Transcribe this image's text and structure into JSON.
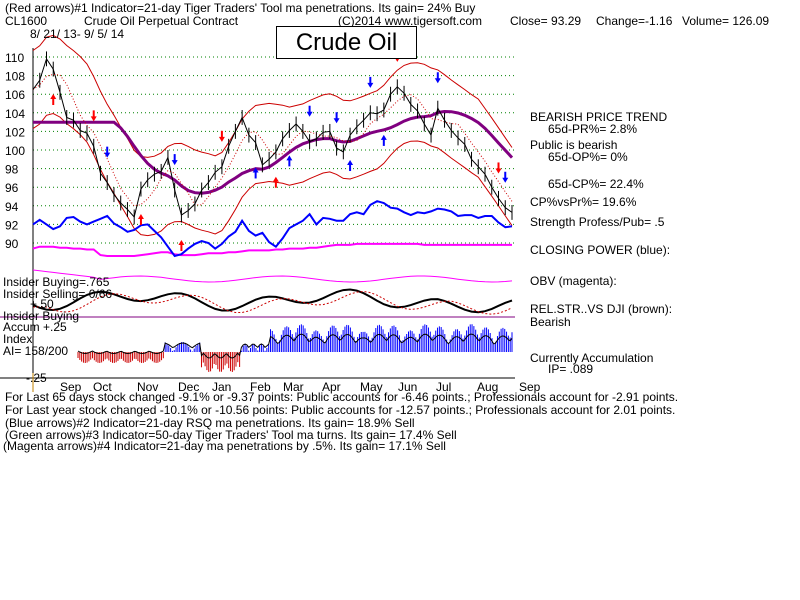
{
  "header": {
    "line1": "(Red arrows)#1 Indicator=21-day Tiger Traders' Tool ma penetrations. Its gain= 24% Buy",
    "symbol": "CL1600",
    "name": "Crude Oil Perpetual Contract",
    "copyright": "(C)2014 www.tigersoft.com",
    "close": "Close=  93.29",
    "change": "Change=-1.16",
    "volume": "Volume= 126.09",
    "date_range": "8/ 21/ 13- 9/ 5/ 14"
  },
  "title": "Crude Oil",
  "right_panel": {
    "trend": "BEARISH PRICE TREND",
    "pr": "65d-PR%= 2.8%",
    "public": "Public is bearish",
    "op": "65d-OP%= 0%",
    "cp": "65d-CP%= 22.4%",
    "cpvspr": "CP%vsPr%=  19.6%",
    "strength": "Strength Profess/Pub= .5",
    "closing_power": "CLOSING POWER (blue):",
    "obv": "OBV (magenta):",
    "relstr": "REL.STR..VS DJI (brown):",
    "bearish": "Bearish",
    "accum": "Currently Accumulation",
    "ip": "IP=  .089"
  },
  "left_panel": {
    "insider_buying": "Insider Buying=.765",
    "insider_selling": "Insider Selling= 0/66",
    "plus50": "+.50",
    "insider_buying2": "Insider Buying",
    "accum": "Accum  +.25",
    "index": "Index",
    "ai": "AI= 158/200",
    "minus25": "-.25"
  },
  "footer": {
    "line1": "For Last 65 days stock changed -9.1% or -9.37 points:  Public accounts for -6.46 points.;  Professionals account for -2.91 points.",
    "line2": "For Last year stock changed -10.1% or -10.56 points:  Public accounts for -12.57 points.;  Professionals account for  2.01 points.",
    "line3": "(Blue arrows)#2 Indicator=21-day RSQ ma penetrations. Its gain= 18.9% Sell",
    "line4": "(Green arrows)#3 Indicator=50-day Tiger Traders' Tool ma turns. Its gain= 17.4% Sell",
    "line5": "(Magenta arrows)#4 Indicator=21-day ma penetrations by .5%. Its gain= 17.1% Sell"
  },
  "colors": {
    "price": "#000000",
    "bands": "#cc0000",
    "ma": "#800080",
    "closing_power": "#0000ff",
    "obv": "#ff00ff",
    "accum_pos": "#0000ff",
    "accum_neg": "#cc0000",
    "grid": "#008000",
    "buy_arrow": "#ff0000",
    "sell_arrow": "#0000ff"
  },
  "chart_data": {
    "type": "line",
    "title": "Crude Oil",
    "ylim": [
      89,
      111
    ],
    "y_ticks": [
      "110",
      "108",
      "106",
      "104",
      "102",
      "100",
      "98",
      "96",
      "94",
      "92",
      "90"
    ],
    "x_ticks": [
      "Sep",
      "Oct",
      "Nov",
      "Dec",
      "Jan",
      "Feb",
      "Mar",
      "Apr",
      "May",
      "Jun",
      "Jul",
      "Aug",
      "Sep"
    ],
    "price_close": [
      106.5,
      107.5,
      109.8,
      108.7,
      106.2,
      103.5,
      103.2,
      102.1,
      101.8,
      100.4,
      97.5,
      96.5,
      95.2,
      94.3,
      93.6,
      92.8,
      95.8,
      96.8,
      97.4,
      97.7,
      99.2,
      95.7,
      93.0,
      93.5,
      94.2,
      95.7,
      96.5,
      97.6,
      98.2,
      100.4,
      102.0,
      103.5,
      101.6,
      100.8,
      98.4,
      99.0,
      99.8,
      101.2,
      102.1,
      102.8,
      102.0,
      100.9,
      101.2,
      101.9,
      102.0,
      100.2,
      99.8,
      101.6,
      102.5,
      103.2,
      104.0,
      103.9,
      104.3,
      106.0,
      106.8,
      106.1,
      104.9,
      104.2,
      102.8,
      101.6,
      104.5,
      103.2,
      102.1,
      101.3,
      100.6,
      99.0,
      98.2,
      97.4,
      96.0,
      94.8,
      93.8,
      93.29
    ],
    "obv": [
      89.4,
      89.6,
      89.6,
      89.6,
      89.5,
      89.5,
      89.4,
      89.4,
      89.3,
      89.3,
      88.7,
      88.6,
      88.6,
      88.6,
      88.6,
      88.6,
      88.7,
      88.8,
      88.9,
      89.0,
      89.0,
      88.8,
      88.7,
      88.7,
      88.7,
      88.8,
      88.9,
      88.9,
      88.9,
      89.0,
      89.0,
      89.1,
      89.2,
      89.2,
      89.2,
      89.2,
      89.3,
      89.3,
      89.4,
      89.4,
      89.4,
      89.5,
      89.5,
      89.6,
      89.7,
      89.8,
      89.8,
      89.8,
      89.9,
      89.9,
      89.9,
      89.9,
      89.9,
      89.9,
      89.9,
      89.9,
      89.9,
      89.9,
      89.8,
      89.8,
      89.8,
      89.8,
      89.8,
      89.8,
      89.8,
      89.8,
      89.8,
      89.8,
      89.8,
      89.8,
      89.8,
      89.8
    ],
    "closing_power": [
      92.0,
      92.5,
      92.0,
      91.5,
      91.8,
      92.7,
      92.8,
      92.3,
      92.0,
      92.3,
      92.6,
      92.9,
      92.1,
      91.7,
      91.2,
      91.4,
      91.9,
      92.0,
      91.3,
      90.6,
      89.6,
      88.6,
      88.8,
      89.4,
      89.9,
      90.2,
      90.0,
      89.4,
      89.9,
      90.7,
      91.2,
      92.4,
      91.3,
      90.8,
      91.1,
      90.1,
      89.6,
      90.5,
      91.6,
      92.0,
      92.4,
      93.1,
      92.0,
      92.7,
      92.6,
      92.4,
      92.4,
      93.1,
      93.3,
      93.1,
      94.1,
      94.5,
      94.3,
      93.8,
      93.7,
      93.3,
      93.0,
      93.3,
      93.2,
      93.4,
      93.7,
      93.6,
      93.4,
      92.9,
      93.0,
      93.0,
      92.7,
      92.9,
      92.9,
      92.2,
      91.7,
      91.8
    ]
  }
}
